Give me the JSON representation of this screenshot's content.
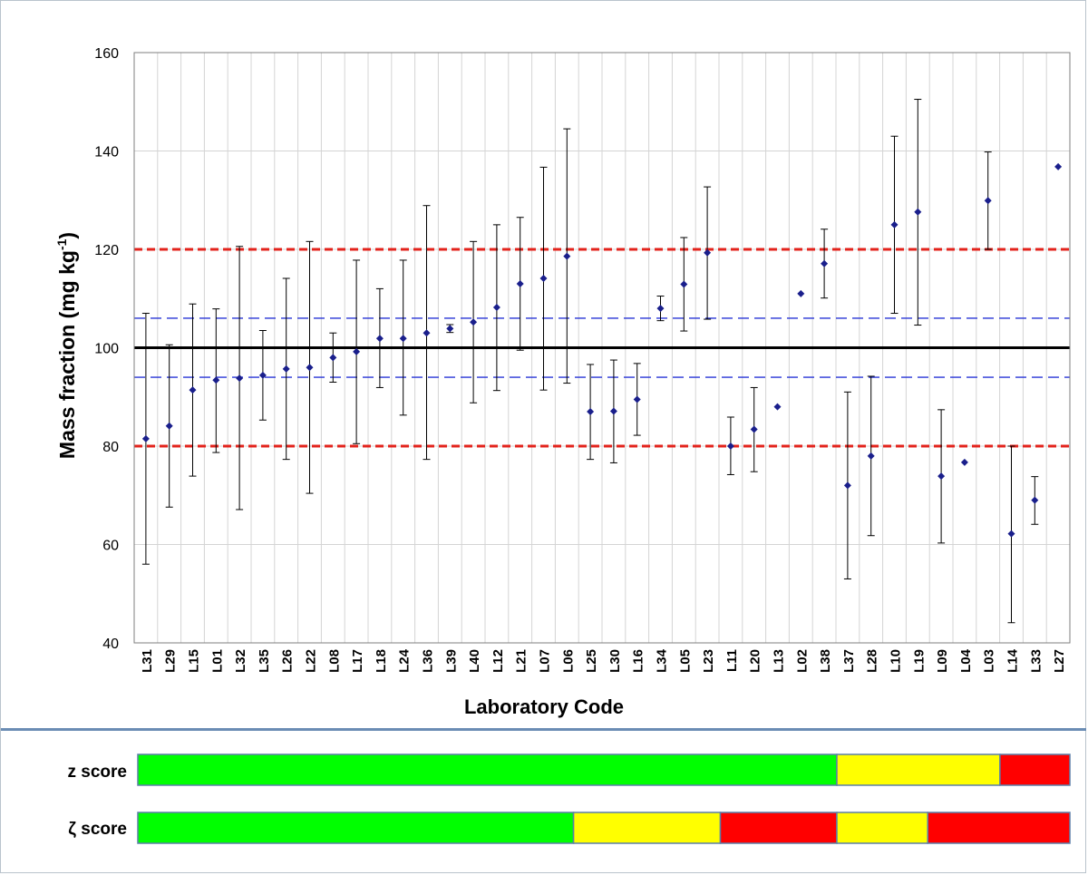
{
  "chart_data": {
    "type": "scatter",
    "xlabel": "Laboratory Code",
    "ylabel": "Mass fraction (mg kg",
    "ylabel_sup": "-1",
    "ylabel_close": ")",
    "ylim": [
      40,
      160
    ],
    "yticks": [
      "40",
      "60",
      "80",
      "100",
      "120",
      "140",
      "160"
    ],
    "grid": true,
    "categories": [
      "L31",
      "L29",
      "L15",
      "L01",
      "L32",
      "L35",
      "L26",
      "L22",
      "L08",
      "L17",
      "L18",
      "L24",
      "L36",
      "L39",
      "L40",
      "L12",
      "L21",
      "L07",
      "L06",
      "L25",
      "L30",
      "L16",
      "L34",
      "L05",
      "L23",
      "L11",
      "L20",
      "L13",
      "L02",
      "L38",
      "L37",
      "L28",
      "L10",
      "L19",
      "L09",
      "L04",
      "L03",
      "L14",
      "L33",
      "L27"
    ],
    "values": [
      81.5,
      84.1,
      91.4,
      93.4,
      93.8,
      94.4,
      95.7,
      96.0,
      98.0,
      99.2,
      101.9,
      101.9,
      103.0,
      103.9,
      105.2,
      108.2,
      113.0,
      114.1,
      118.6,
      87.0,
      87.1,
      89.5,
      108.0,
      112.9,
      119.3,
      80.0,
      83.4,
      88.0,
      111.0,
      117.1,
      72.0,
      78.0,
      125.0,
      127.6,
      73.9,
      76.7,
      129.9,
      62.2,
      69.0,
      136.8
    ],
    "err_low": [
      56.0,
      67.6,
      73.9,
      78.7,
      67.1,
      85.3,
      77.3,
      70.4,
      93.0,
      80.5,
      91.9,
      86.3,
      77.3,
      103.1,
      88.8,
      91.3,
      99.5,
      91.4,
      92.8,
      77.3,
      76.6,
      82.2,
      105.5,
      103.4,
      105.8,
      74.2,
      74.8,
      null,
      null,
      110.1,
      53.0,
      61.8,
      107.0,
      104.6,
      60.3,
      null,
      120.0,
      44.1,
      64.1,
      null
    ],
    "err_high": [
      107.0,
      100.6,
      108.9,
      107.9,
      120.6,
      103.5,
      114.1,
      121.6,
      103.0,
      117.8,
      112.0,
      117.8,
      128.9,
      104.7,
      121.6,
      125.0,
      126.5,
      136.7,
      144.5,
      96.6,
      97.5,
      96.8,
      110.5,
      122.4,
      132.7,
      85.9,
      91.9,
      null,
      null,
      124.1,
      91.0,
      94.2,
      143.0,
      150.5,
      87.4,
      null,
      139.8,
      80.0,
      73.8,
      null
    ],
    "reference_lines": [
      {
        "value": 100,
        "color": "#000000",
        "style": "solid"
      },
      {
        "value": 106,
        "color": "#2733d6",
        "style": "dashed"
      },
      {
        "value": 94,
        "color": "#2733d6",
        "style": "dashed"
      },
      {
        "value": 120,
        "color": "#e3231c",
        "style": "dashed"
      },
      {
        "value": 80,
        "color": "#e3231c",
        "style": "dashed"
      }
    ],
    "point_color": "#1a1f8c"
  },
  "scores": [
    {
      "label": "z score",
      "segments": [
        {
          "from": 0,
          "to": 30,
          "color": "#00ff00"
        },
        {
          "from": 30,
          "to": 37,
          "color": "#ffff00"
        },
        {
          "from": 37,
          "to": 40,
          "color": "#ff0000"
        }
      ]
    },
    {
      "label": "ζ score",
      "segments": [
        {
          "from": 0,
          "to": 18.7,
          "color": "#00ff00"
        },
        {
          "from": 18.7,
          "to": 25,
          "color": "#ffff00"
        },
        {
          "from": 25,
          "to": 30,
          "color": "#ff0000"
        },
        {
          "from": 30,
          "to": 33.9,
          "color": "#ffff00"
        },
        {
          "from": 33.9,
          "to": 40,
          "color": "#ff0000"
        }
      ]
    }
  ]
}
